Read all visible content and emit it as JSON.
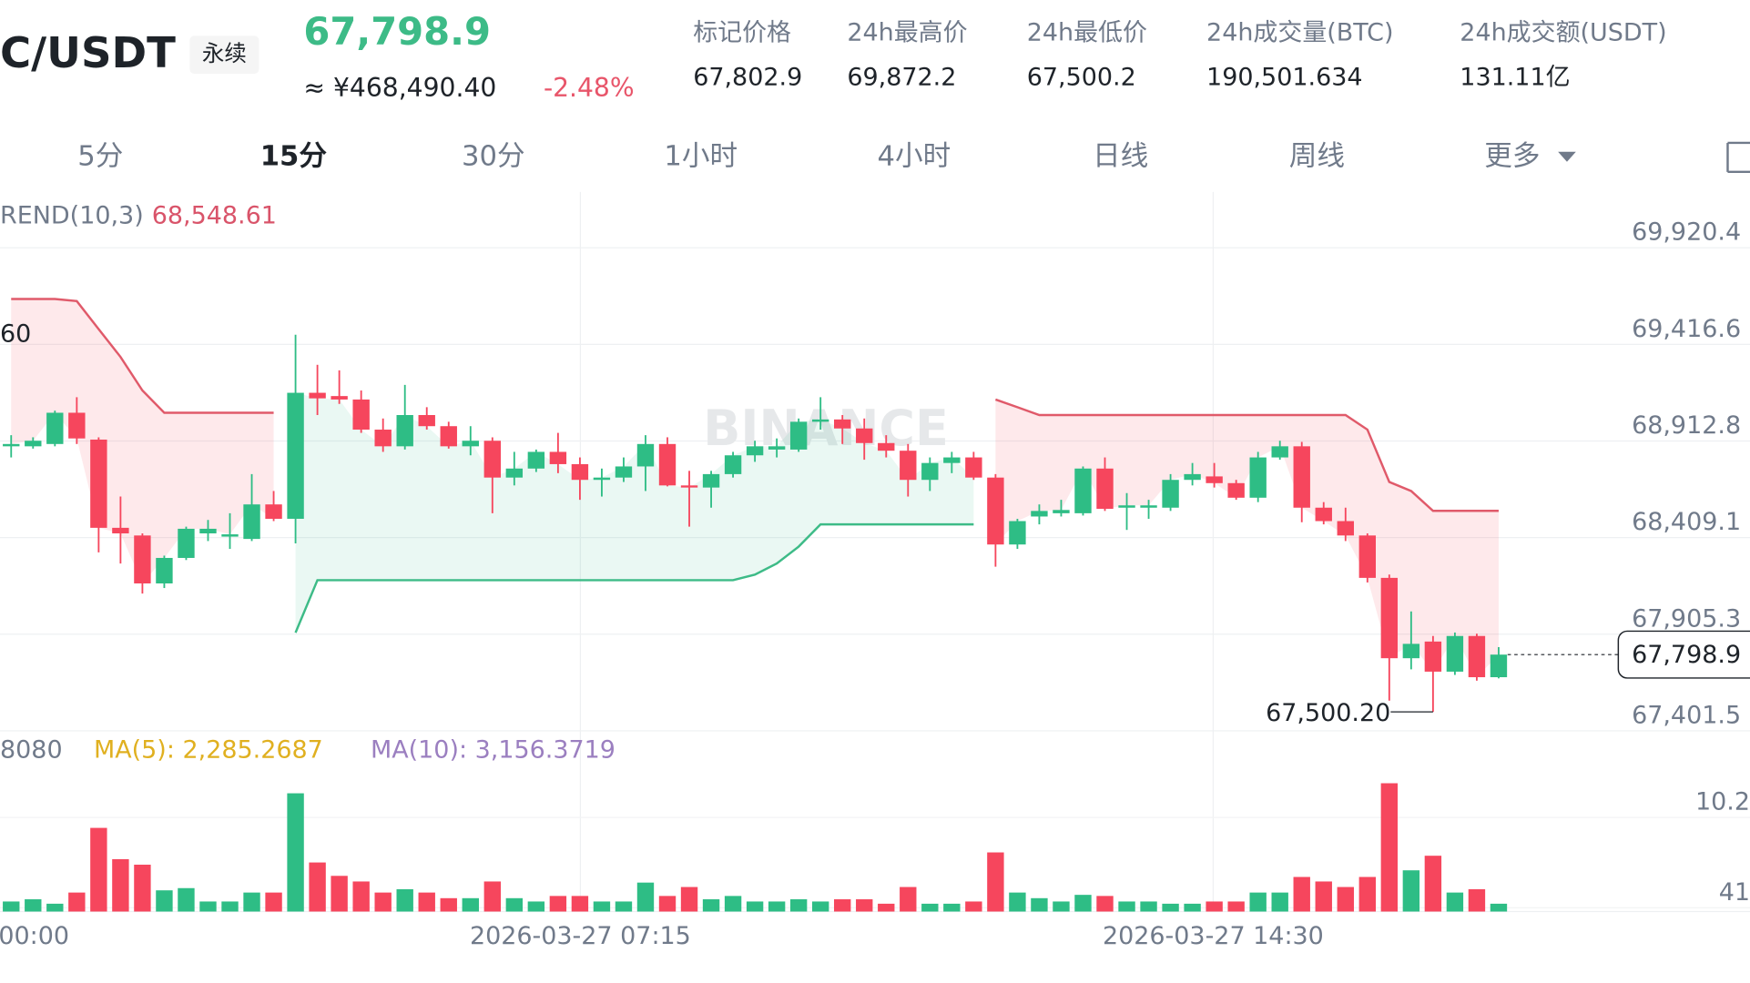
{
  "header": {
    "symbol": "C/USDT",
    "badge": "永续",
    "price": "67,798.9",
    "cny": "≈ ¥468,490.40",
    "change": "-2.48%",
    "stats": [
      {
        "label": "标记价格",
        "value": "67,802.9"
      },
      {
        "label": "24h最高价",
        "value": "69,872.2"
      },
      {
        "label": "24h最低价",
        "value": "67,500.2"
      },
      {
        "label": "24h成交量(BTC)",
        "value": "190,501.634"
      },
      {
        "label": "24h成交额(USDT)",
        "value": "131.11亿"
      }
    ]
  },
  "tabs": [
    "5分",
    "15分",
    "30分",
    "1小时",
    "4小时",
    "日线",
    "周线",
    "更多"
  ],
  "chart": {
    "type": "candlestick",
    "indicator": "REND(10,3)",
    "indicator_value": "68,548.61",
    "side_label": "60",
    "watermark": "BINANCE",
    "up_color": "#2ebd85",
    "down_color": "#f6465d",
    "ylim": [
      67401.5,
      70211.3
    ],
    "yticks": [
      {
        "value": 69920.4,
        "label": "69,920.4"
      },
      {
        "value": 69416.6,
        "label": "69,416.6"
      },
      {
        "value": 68912.8,
        "label": "68,912.8"
      },
      {
        "value": 68409.1,
        "label": "68,409.1"
      },
      {
        "value": 67905.3,
        "label": "67,905.3"
      },
      {
        "value": 67401.5,
        "label": "67,401.5"
      }
    ],
    "last_price": {
      "value": 67798.9,
      "label": "67,798.9"
    },
    "low_annotation": {
      "value": 67500.2,
      "label": "67,500.20"
    },
    "xlabels": [
      "00:00",
      "2026-03-27 07:15",
      "2026-03-27 14:30"
    ],
    "candles": [
      [
        68885,
        68943,
        68827,
        68897
      ],
      [
        68885,
        68932,
        68873,
        68914
      ],
      [
        68897,
        69071,
        68885,
        69060
      ],
      [
        69060,
        69141,
        68897,
        68926
      ],
      [
        68920,
        68932,
        68332,
        68460
      ],
      [
        68460,
        68623,
        68274,
        68431
      ],
      [
        68420,
        68431,
        68117,
        68170
      ],
      [
        68170,
        68315,
        68146,
        68303
      ],
      [
        68303,
        68466,
        68292,
        68455
      ],
      [
        68431,
        68501,
        68391,
        68455
      ],
      [
        68414,
        68536,
        68350,
        68426
      ],
      [
        68402,
        68740,
        68391,
        68582
      ],
      [
        68582,
        68652,
        68495,
        68507
      ],
      [
        68507,
        69467,
        68379,
        69164
      ],
      [
        69164,
        69310,
        69048,
        69135
      ],
      [
        69147,
        69281,
        69106,
        69129
      ],
      [
        69129,
        69176,
        68955,
        68972
      ],
      [
        68972,
        69030,
        68856,
        68885
      ],
      [
        68885,
        69205,
        68868,
        69048
      ],
      [
        69048,
        69089,
        68972,
        68990
      ],
      [
        68990,
        69013,
        68873,
        68885
      ],
      [
        68885,
        68990,
        68838,
        68914
      ],
      [
        68914,
        68932,
        68536,
        68722
      ],
      [
        68722,
        68856,
        68681,
        68769
      ],
      [
        68769,
        68868,
        68751,
        68856
      ],
      [
        68856,
        68955,
        68745,
        68792
      ],
      [
        68792,
        68827,
        68606,
        68710
      ],
      [
        68710,
        68769,
        68623,
        68722
      ],
      [
        68722,
        68827,
        68699,
        68780
      ],
      [
        68780,
        68943,
        68652,
        68897
      ],
      [
        68897,
        68932,
        68676,
        68681
      ],
      [
        68681,
        68757,
        68466,
        68670
      ],
      [
        68670,
        68757,
        68565,
        68740
      ],
      [
        68740,
        68856,
        68722,
        68838
      ],
      [
        68838,
        68914,
        68804,
        68885
      ],
      [
        68868,
        68926,
        68827,
        68885
      ],
      [
        68868,
        69030,
        68856,
        69013
      ],
      [
        69013,
        69141,
        68972,
        69025
      ],
      [
        69025,
        69048,
        68897,
        68978
      ],
      [
        68978,
        69030,
        68815,
        68902
      ],
      [
        68902,
        68943,
        68827,
        68862
      ],
      [
        68862,
        68897,
        68623,
        68710
      ],
      [
        68710,
        68827,
        68652,
        68798
      ],
      [
        68798,
        68856,
        68745,
        68827
      ],
      [
        68827,
        68856,
        68710,
        68722
      ],
      [
        68722,
        68740,
        68257,
        68373
      ],
      [
        68373,
        68507,
        68350,
        68495
      ],
      [
        68519,
        68582,
        68478,
        68548
      ],
      [
        68536,
        68606,
        68519,
        68553
      ],
      [
        68536,
        68780,
        68524,
        68769
      ],
      [
        68769,
        68827,
        68548,
        68559
      ],
      [
        68565,
        68641,
        68449,
        68577
      ],
      [
        68565,
        68606,
        68507,
        68577
      ],
      [
        68565,
        68740,
        68548,
        68710
      ],
      [
        68710,
        68798,
        68681,
        68740
      ],
      [
        68728,
        68798,
        68670,
        68693
      ],
      [
        68693,
        68710,
        68606,
        68617
      ],
      [
        68617,
        68856,
        68594,
        68827
      ],
      [
        68827,
        68914,
        68815,
        68885
      ],
      [
        68885,
        68908,
        68489,
        68565
      ],
      [
        68565,
        68594,
        68478,
        68495
      ],
      [
        68495,
        68565,
        68391,
        68420
      ],
      [
        68420,
        68431,
        68175,
        68199
      ],
      [
        68199,
        68216,
        67559,
        67780
      ],
      [
        67780,
        68024,
        67722,
        67855
      ],
      [
        67867,
        67896,
        67500.2,
        67710
      ],
      [
        67710,
        67914,
        67693,
        67896
      ],
      [
        67896,
        67908,
        67663,
        67681
      ],
      [
        67681,
        67838,
        67675,
        67798.9
      ]
    ],
    "supertrend_upper": [
      69653,
      69653,
      69653,
      69642,
      69496,
      69351,
      69176,
      69060,
      69060,
      69060,
      69060,
      69060,
      69060,
      null,
      null,
      null,
      null,
      null,
      null,
      null,
      null,
      null,
      null,
      null,
      null,
      null,
      null,
      null,
      null,
      null,
      null,
      null,
      null,
      null,
      null,
      null,
      null,
      null,
      null,
      null,
      null,
      null,
      null,
      null,
      null,
      69129,
      69089,
      69048,
      69048,
      69048,
      69048,
      69048,
      69048,
      69048,
      69048,
      69048,
      69048,
      69048,
      69048,
      69048,
      69048,
      69048,
      68972,
      68699,
      68652,
      68548.61,
      68548.61,
      68548.61,
      68548.61
    ],
    "supertrend_lower": [
      null,
      null,
      null,
      null,
      null,
      null,
      null,
      null,
      null,
      null,
      null,
      null,
      null,
      67913,
      68187,
      68187,
      68187,
      68187,
      68187,
      68187,
      68187,
      68187,
      68187,
      68187,
      68187,
      68187,
      68187,
      68187,
      68187,
      68187,
      68187,
      68187,
      68187,
      68187,
      68216,
      68274,
      68362,
      68478,
      68478,
      68478,
      68478,
      68478,
      68478,
      68478,
      68478,
      null,
      null,
      null,
      null,
      null,
      null,
      null,
      null,
      null,
      null,
      null,
      null,
      null,
      null,
      null,
      null,
      null,
      null,
      null,
      null,
      null,
      null,
      null,
      null
    ],
    "volume": {
      "label": "8080",
      "ma5": "MA(5): 2,285.2687",
      "ma10": "MA(10): 3,156.3719",
      "ylim": [
        0,
        15.36
      ],
      "yticks": [
        10.2,
        {
          "value": 0.41,
          "label": "41"
        }
      ],
      "values": [
        1.09,
        1.33,
        0.85,
        2.06,
        9.07,
        5.68,
        5.08,
        2.3,
        2.54,
        1.09,
        1.09,
        2.06,
        2.06,
        12.82,
        5.32,
        3.87,
        3.26,
        2.06,
        2.42,
        2.06,
        1.45,
        1.45,
        3.26,
        1.45,
        1.09,
        1.69,
        1.69,
        1.09,
        1.09,
        3.14,
        1.69,
        2.66,
        1.33,
        1.69,
        1.09,
        1.09,
        1.33,
        1.09,
        1.33,
        1.33,
        0.85,
        2.66,
        0.85,
        0.85,
        1.09,
        6.41,
        2.06,
        1.45,
        1.09,
        1.81,
        1.69,
        1.09,
        1.09,
        0.85,
        0.85,
        1.09,
        1.09,
        2.06,
        2.06,
        3.75,
        3.26,
        2.66,
        3.75,
        13.91,
        4.47,
        6.05,
        2.06,
        2.42,
        0.85
      ]
    }
  }
}
